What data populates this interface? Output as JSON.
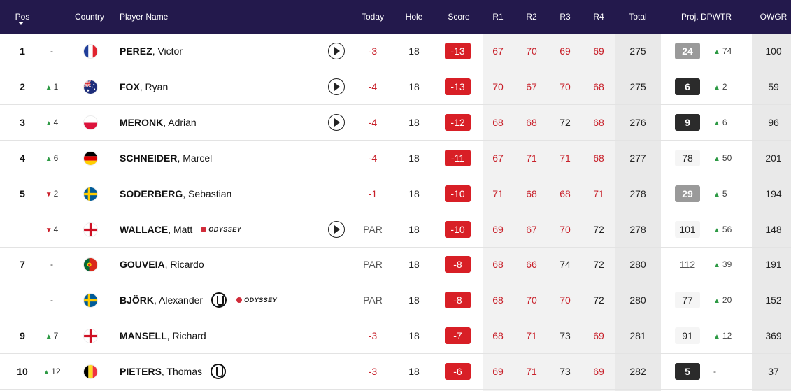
{
  "header": {
    "pos": "Pos",
    "country": "Country",
    "player": "Player Name",
    "today": "Today",
    "hole": "Hole",
    "score": "Score",
    "r1": "R1",
    "r2": "R2",
    "r3": "R3",
    "r4": "R4",
    "total": "Total",
    "proj": "Proj. DPWTR",
    "owgr": "OWGR"
  },
  "colors": {
    "header_bg": "#23194c",
    "score_red": "#d81f26",
    "up_green": "#2e9a45",
    "down_red": "#cc1f2a"
  },
  "rows": [
    {
      "pos": "1",
      "move_dir": "none",
      "move": "-",
      "country": "france-flag",
      "last": "PEREZ",
      "first": ", Victor",
      "badges": [],
      "video": true,
      "today": "-3",
      "hole": "18",
      "score": "-13",
      "r1": "67",
      "r2": "70",
      "r3": "69",
      "r4": "69",
      "total": "275",
      "proj": "24",
      "proj_style": "grey",
      "proj_move_dir": "up",
      "proj_move": "74",
      "owgr": "100"
    },
    {
      "pos": "2",
      "move_dir": "up",
      "move": "1",
      "country": "australia-flag",
      "last": "FOX",
      "first": ", Ryan",
      "badges": [],
      "video": true,
      "today": "-4",
      "hole": "18",
      "score": "-13",
      "r1": "70",
      "r2": "67",
      "r3": "70",
      "r4": "68",
      "total": "275",
      "proj": "6",
      "proj_style": "black",
      "proj_move_dir": "up",
      "proj_move": "2",
      "owgr": "59"
    },
    {
      "pos": "3",
      "move_dir": "up",
      "move": "4",
      "country": "poland-flag",
      "last": "MERONK",
      "first": ", Adrian",
      "badges": [],
      "video": true,
      "today": "-4",
      "hole": "18",
      "score": "-12",
      "r1": "68",
      "r2": "68",
      "r3": "72",
      "r4": "68",
      "total": "276",
      "proj": "9",
      "proj_style": "black",
      "proj_move_dir": "up",
      "proj_move": "6",
      "owgr": "96"
    },
    {
      "pos": "4",
      "move_dir": "up",
      "move": "6",
      "country": "germany-flag",
      "last": "SCHNEIDER",
      "first": ", Marcel",
      "badges": [],
      "video": false,
      "today": "-4",
      "hole": "18",
      "score": "-11",
      "r1": "67",
      "r2": "71",
      "r3": "71",
      "r4": "68",
      "total": "277",
      "proj": "78",
      "proj_style": "light",
      "proj_move_dir": "up",
      "proj_move": "50",
      "owgr": "201"
    },
    {
      "pos": "5",
      "move_dir": "down",
      "move": "2",
      "country": "sweden-flag",
      "last": "SODERBERG",
      "first": ", Sebastian",
      "badges": [],
      "video": false,
      "today": "-1",
      "hole": "18",
      "score": "-10",
      "r1": "71",
      "r2": "68",
      "r3": "68",
      "r4": "71",
      "total": "278",
      "proj": "29",
      "proj_style": "grey",
      "proj_move_dir": "up",
      "proj_move": "5",
      "owgr": "194",
      "tied_next": true
    },
    {
      "pos": "",
      "move_dir": "down",
      "move": "4",
      "country": "england-flag",
      "last": "WALLACE",
      "first": ", Matt",
      "badges": [
        "odyssey"
      ],
      "odyssey_label": "ODYSSEY",
      "video": true,
      "today": "PAR",
      "hole": "18",
      "score": "-10",
      "r1": "69",
      "r2": "67",
      "r3": "70",
      "r4": "72",
      "total": "278",
      "proj": "101",
      "proj_style": "light",
      "proj_move_dir": "up",
      "proj_move": "56",
      "owgr": "148"
    },
    {
      "pos": "7",
      "move_dir": "none",
      "move": "-",
      "country": "portugal-flag",
      "last": "GOUVEIA",
      "first": ", Ricardo",
      "badges": [],
      "video": false,
      "today": "PAR",
      "hole": "18",
      "score": "-8",
      "r1": "68",
      "r2": "66",
      "r3": "74",
      "r4": "72",
      "total": "280",
      "proj": "112",
      "proj_style": "plain",
      "proj_move_dir": "up",
      "proj_move": "39",
      "owgr": "191",
      "tied_next": true
    },
    {
      "pos": "",
      "move_dir": "none",
      "move": "-",
      "country": "sweden-flag",
      "last": "BJÖRK",
      "first": ", Alexander",
      "badges": [
        "claret",
        "odyssey"
      ],
      "odyssey_label": "ODYSSEY",
      "video": false,
      "today": "PAR",
      "hole": "18",
      "score": "-8",
      "r1": "68",
      "r2": "70",
      "r3": "70",
      "r4": "72",
      "total": "280",
      "proj": "77",
      "proj_style": "light",
      "proj_move_dir": "up",
      "proj_move": "20",
      "owgr": "152"
    },
    {
      "pos": "9",
      "move_dir": "up",
      "move": "7",
      "country": "england-flag",
      "last": "MANSELL",
      "first": ", Richard",
      "badges": [],
      "video": false,
      "today": "-3",
      "hole": "18",
      "score": "-7",
      "r1": "68",
      "r2": "71",
      "r3": "73",
      "r4": "69",
      "total": "281",
      "proj": "91",
      "proj_style": "light",
      "proj_move_dir": "up",
      "proj_move": "12",
      "owgr": "369"
    },
    {
      "pos": "10",
      "move_dir": "up",
      "move": "12",
      "country": "belgium-flag",
      "last": "PIETERS",
      "first": ", Thomas",
      "badges": [
        "claret"
      ],
      "video": false,
      "today": "-3",
      "hole": "18",
      "score": "-6",
      "r1": "69",
      "r2": "71",
      "r3": "73",
      "r4": "69",
      "total": "282",
      "proj": "5",
      "proj_style": "black",
      "proj_move_dir": "none",
      "proj_move": "-",
      "owgr": "37"
    }
  ]
}
